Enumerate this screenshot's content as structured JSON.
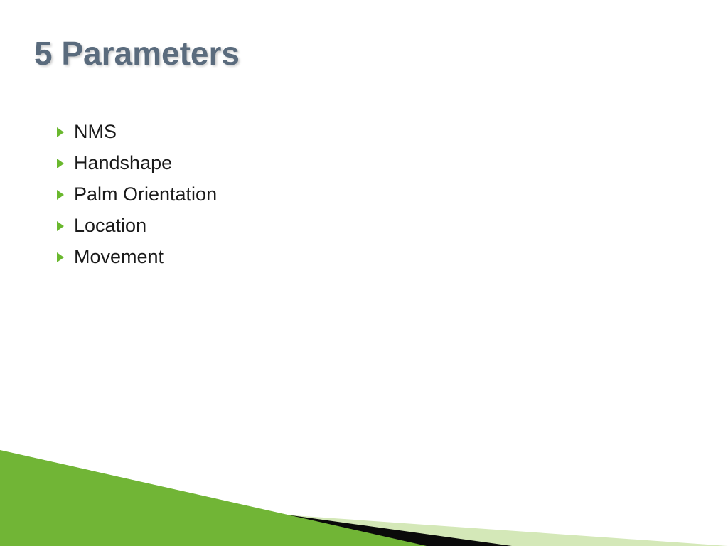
{
  "slide": {
    "title": "5 Parameters",
    "title_color": "#5a6b7d",
    "title_fontsize": 46,
    "background_color": "#ffffff",
    "bullets": [
      {
        "text": "NMS"
      },
      {
        "text": "Handshape"
      },
      {
        "text": "Palm Orientation"
      },
      {
        "text": "Location"
      },
      {
        "text": "Movement"
      }
    ],
    "bullet_marker_color": "#6ab82e",
    "bullet_text_color": "#1a1a1a",
    "bullet_fontsize": 27,
    "decoration": {
      "triangle_light_color": "#d4e8b8",
      "triangle_black_color": "#0a0a0a",
      "triangle_green_color": "#5fa82c"
    }
  }
}
